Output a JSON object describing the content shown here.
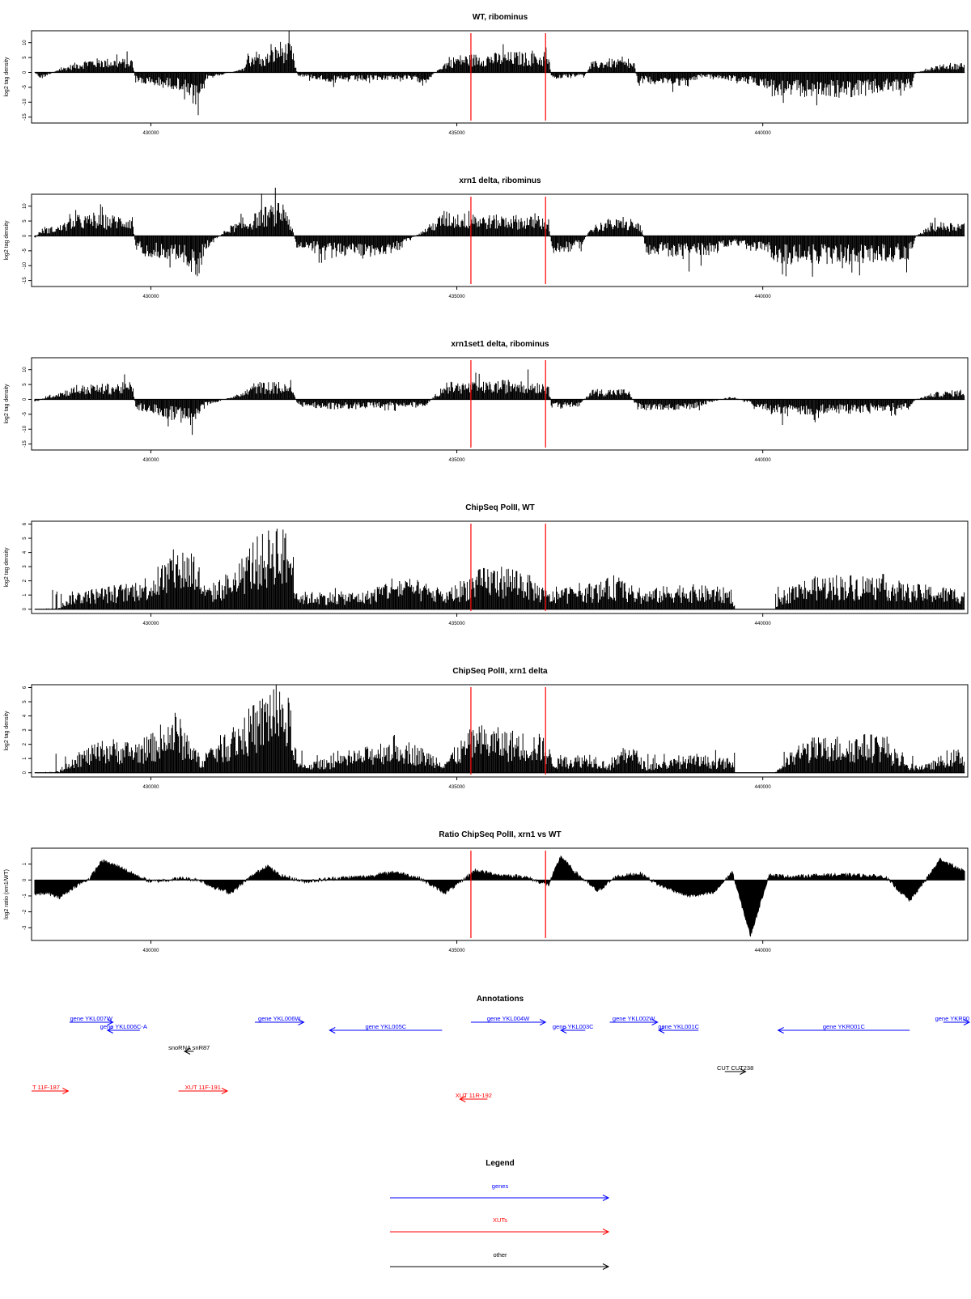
{
  "highlight_color": "#ff0000",
  "colors": {
    "genes": "#0000ff",
    "xuts": "#ff0000",
    "other": "#000000",
    "bars": "#000000"
  },
  "panels": [
    {
      "title": "WT, ribominus",
      "ylabel": "log2 tag density",
      "type": "signed",
      "ylim": [
        -17,
        14
      ],
      "yticks": [
        -15,
        -10,
        -5,
        0,
        5,
        10
      ],
      "profile": {
        "pos": [
          [
            428100,
            0
          ],
          [
            428200,
            -2
          ],
          [
            428500,
            1
          ],
          [
            428800,
            3
          ],
          [
            429000,
            4
          ],
          [
            429700,
            4
          ],
          [
            429750,
            -3
          ],
          [
            430000,
            -4
          ],
          [
            430500,
            -5
          ],
          [
            430700,
            -10
          ],
          [
            430780,
            -14
          ],
          [
            430900,
            -2
          ],
          [
            431500,
            1
          ],
          [
            431550,
            3
          ],
          [
            431700,
            7
          ],
          [
            431800,
            4
          ],
          [
            432000,
            7
          ],
          [
            432100,
            9
          ],
          [
            432300,
            8
          ],
          [
            432400,
            -1
          ],
          [
            433000,
            -3
          ],
          [
            434000,
            -2
          ],
          [
            434500,
            -3
          ],
          [
            434800,
            3
          ],
          [
            435000,
            5
          ],
          [
            436000,
            6
          ],
          [
            436500,
            5
          ],
          [
            436550,
            -2
          ],
          [
            437100,
            -1
          ],
          [
            437200,
            3
          ],
          [
            437500,
            4
          ],
          [
            437900,
            3
          ],
          [
            437950,
            -3
          ],
          [
            438800,
            -4
          ],
          [
            439000,
            -1
          ],
          [
            440000,
            -4
          ],
          [
            440300,
            -7
          ],
          [
            441500,
            -7
          ],
          [
            442400,
            -5
          ],
          [
            442500,
            0
          ],
          [
            442800,
            2
          ],
          [
            443300,
            3
          ]
        ]
      }
    },
    {
      "title": "xrn1 delta, ribominus",
      "ylabel": "log2 tag density",
      "type": "signed",
      "ylim": [
        -17,
        14
      ],
      "yticks": [
        -15,
        -10,
        -5,
        0,
        5,
        10
      ],
      "profile": {
        "pos": [
          [
            428100,
            -1
          ],
          [
            428200,
            2
          ],
          [
            428500,
            3
          ],
          [
            428800,
            6
          ],
          [
            429700,
            6
          ],
          [
            429750,
            -4
          ],
          [
            430000,
            -6
          ],
          [
            430500,
            -7
          ],
          [
            430750,
            -13
          ],
          [
            430900,
            -4
          ],
          [
            431300,
            3
          ],
          [
            431600,
            5
          ],
          [
            431800,
            8
          ],
          [
            432000,
            9
          ],
          [
            432200,
            10
          ],
          [
            432400,
            -4
          ],
          [
            433000,
            -6
          ],
          [
            434000,
            -5
          ],
          [
            434800,
            7
          ],
          [
            435500,
            6
          ],
          [
            436000,
            6
          ],
          [
            436500,
            5
          ],
          [
            436550,
            -5
          ],
          [
            437000,
            -4
          ],
          [
            437200,
            3
          ],
          [
            437500,
            5
          ],
          [
            438000,
            4
          ],
          [
            438100,
            -5
          ],
          [
            438800,
            -7
          ],
          [
            439500,
            -3
          ],
          [
            440000,
            -5
          ],
          [
            440300,
            -8
          ],
          [
            441500,
            -8
          ],
          [
            442400,
            -7
          ],
          [
            442500,
            0
          ],
          [
            442800,
            4
          ],
          [
            443300,
            4
          ]
        ]
      }
    },
    {
      "title": "xrn1set1 delta, ribominus",
      "ylabel": "log2 tag density",
      "type": "signed",
      "ylim": [
        -17,
        14
      ],
      "yticks": [
        -15,
        -10,
        -5,
        0,
        5,
        10
      ],
      "profile": {
        "pos": [
          [
            428100,
            -1
          ],
          [
            428300,
            1
          ],
          [
            428800,
            4
          ],
          [
            429700,
            5
          ],
          [
            429750,
            -3
          ],
          [
            430000,
            -4
          ],
          [
            430700,
            -8
          ],
          [
            430900,
            -2
          ],
          [
            431500,
            2
          ],
          [
            431700,
            5
          ],
          [
            432000,
            5
          ],
          [
            432300,
            4
          ],
          [
            432400,
            -2
          ],
          [
            433000,
            -3
          ],
          [
            434500,
            -2
          ],
          [
            434800,
            5
          ],
          [
            435500,
            5
          ],
          [
            436000,
            6
          ],
          [
            436500,
            5
          ],
          [
            436550,
            -3
          ],
          [
            437000,
            -2
          ],
          [
            437200,
            3
          ],
          [
            437800,
            3
          ],
          [
            437950,
            -3
          ],
          [
            438800,
            -3
          ],
          [
            439500,
            1
          ],
          [
            440000,
            -3
          ],
          [
            440300,
            -5
          ],
          [
            441500,
            -4
          ],
          [
            442400,
            -3
          ],
          [
            442500,
            0
          ],
          [
            442800,
            2
          ],
          [
            443300,
            3
          ]
        ]
      }
    },
    {
      "title": "ChipSeq PolII, WT",
      "ylabel": "log2 tag density",
      "type": "positive",
      "ylim": [
        -0.3,
        6.2
      ],
      "yticks": [
        0,
        1,
        2,
        3,
        4,
        5,
        6
      ],
      "profile": {
        "pos": [
          [
            428100,
            0
          ],
          [
            428500,
            0.1
          ],
          [
            428700,
            1
          ],
          [
            429600,
            1.5
          ],
          [
            430000,
            2
          ],
          [
            430400,
            3.5
          ],
          [
            430700,
            3.6
          ],
          [
            430900,
            1.2
          ],
          [
            431400,
            2.5
          ],
          [
            431700,
            4.2
          ],
          [
            431900,
            4.3
          ],
          [
            432000,
            5.5
          ],
          [
            432300,
            4
          ],
          [
            432400,
            1
          ],
          [
            433500,
            1
          ],
          [
            434000,
            2
          ],
          [
            434500,
            1.5
          ],
          [
            434800,
            1
          ],
          [
            435200,
            2
          ],
          [
            435500,
            2.5
          ],
          [
            436000,
            2.5
          ],
          [
            436500,
            1
          ],
          [
            437000,
            1.5
          ],
          [
            437300,
            1.5
          ],
          [
            437600,
            2
          ],
          [
            438000,
            1
          ],
          [
            438600,
            1.5
          ],
          [
            439500,
            1.2
          ],
          [
            439550,
            0
          ],
          [
            440200,
            0
          ],
          [
            440300,
            1
          ],
          [
            440500,
            1.5
          ],
          [
            441000,
            2
          ],
          [
            442000,
            2
          ],
          [
            442300,
            1.5
          ],
          [
            443300,
            1.2
          ]
        ]
      }
    },
    {
      "title": "ChipSeq PolII, xrn1 delta",
      "ylabel": "log2 tag density",
      "type": "positive",
      "ylim": [
        -0.3,
        6.2
      ],
      "yticks": [
        0,
        1,
        2,
        3,
        4,
        5,
        6
      ],
      "profile": {
        "pos": [
          [
            428100,
            0
          ],
          [
            428500,
            0.1
          ],
          [
            428700,
            1
          ],
          [
            429300,
            2
          ],
          [
            429700,
            1.8
          ],
          [
            430000,
            2.2
          ],
          [
            430400,
            3.6
          ],
          [
            430800,
            1
          ],
          [
            431400,
            3
          ],
          [
            431800,
            4.3
          ],
          [
            432000,
            5.6
          ],
          [
            432300,
            4
          ],
          [
            432400,
            0.5
          ],
          [
            433200,
            1
          ],
          [
            434000,
            2.2
          ],
          [
            434400,
            1.5
          ],
          [
            434800,
            0.8
          ],
          [
            435300,
            2.8
          ],
          [
            435800,
            2.5
          ],
          [
            436400,
            2.2
          ],
          [
            436600,
            0.8
          ],
          [
            437200,
            1.2
          ],
          [
            437500,
            0.5
          ],
          [
            437800,
            2
          ],
          [
            438100,
            0.5
          ],
          [
            438800,
            1
          ],
          [
            439500,
            0.8
          ],
          [
            439550,
            0
          ],
          [
            440200,
            0
          ],
          [
            440400,
            1
          ],
          [
            440700,
            2
          ],
          [
            441500,
            2.2
          ],
          [
            442000,
            2.3
          ],
          [
            442300,
            0.5
          ],
          [
            442700,
            0.5
          ],
          [
            443000,
            1.2
          ],
          [
            443300,
            1.5
          ]
        ]
      }
    },
    {
      "title": "Ratio ChipSeq PolII, xrn1 vs WT",
      "ylabel": "log2 ratio (xrn1/WT)",
      "type": "ratio",
      "ylim": [
        -3.8,
        2.0
      ],
      "yticks": [
        -3,
        -2,
        -1,
        0,
        1
      ],
      "profile": {
        "pos": [
          [
            428100,
            -0.9
          ],
          [
            428300,
            -0.8
          ],
          [
            428500,
            -1.1
          ],
          [
            428800,
            -0.3
          ],
          [
            429000,
            0.1
          ],
          [
            429200,
            1.2
          ],
          [
            429500,
            0.8
          ],
          [
            429800,
            0.2
          ],
          [
            430000,
            -0.1
          ],
          [
            430500,
            0.1
          ],
          [
            430800,
            0
          ],
          [
            431000,
            -0.4
          ],
          [
            431300,
            -0.8
          ],
          [
            431600,
            0.1
          ],
          [
            431900,
            0.9
          ],
          [
            432100,
            0.3
          ],
          [
            432500,
            -0.1
          ],
          [
            433000,
            0.1
          ],
          [
            433500,
            0.2
          ],
          [
            434000,
            0.5
          ],
          [
            434400,
            0.1
          ],
          [
            434800,
            -0.8
          ],
          [
            435000,
            -0.3
          ],
          [
            435300,
            0.6
          ],
          [
            435700,
            0.3
          ],
          [
            436100,
            0.2
          ],
          [
            436500,
            -0.3
          ],
          [
            436700,
            1.5
          ],
          [
            436900,
            0.6
          ],
          [
            437300,
            -0.7
          ],
          [
            437600,
            0.2
          ],
          [
            438000,
            0.4
          ],
          [
            438300,
            -0.3
          ],
          [
            438800,
            -1
          ],
          [
            439200,
            -0.8
          ],
          [
            439500,
            0.5
          ],
          [
            439800,
            -3.5
          ],
          [
            440100,
            0.3
          ],
          [
            440500,
            0.2
          ],
          [
            441000,
            0.3
          ],
          [
            441500,
            0.3
          ],
          [
            442000,
            0.2
          ],
          [
            442400,
            -1.3
          ],
          [
            442700,
            0.2
          ],
          [
            442900,
            1.3
          ],
          [
            443300,
            0.5
          ]
        ]
      }
    }
  ],
  "chart_data": {
    "type": "bar",
    "xlim": [
      428050,
      443350
    ],
    "xticks": [
      430000,
      435000,
      440000
    ],
    "xtick_labels": [
      "430000",
      "435000",
      "440000"
    ],
    "highlights": [
      435230,
      436450
    ],
    "series_names": [
      "WT, ribominus",
      "xrn1 delta, ribominus",
      "xrn1set1 delta, ribominus",
      "ChipSeq PolII, WT",
      "ChipSeq PolII, xrn1 delta",
      "Ratio ChipSeq PolII, xrn1 vs WT"
    ]
  },
  "annotations": {
    "title": "Annotations",
    "items": [
      {
        "label": "gene YKL007W",
        "start": 428670,
        "end": 429380,
        "strand": "+",
        "kind": "gene",
        "row": 0
      },
      {
        "label": "gene YKL006C-A",
        "start": 429290,
        "end": 429820,
        "strand": "-",
        "kind": "gene",
        "row": 1
      },
      {
        "label": "gene YKL006W",
        "start": 431700,
        "end": 432500,
        "strand": "+",
        "kind": "gene",
        "row": 0
      },
      {
        "label": "gene YKL005C",
        "start": 432920,
        "end": 434760,
        "strand": "-",
        "kind": "gene",
        "row": 1
      },
      {
        "label": "gene YKL004W",
        "start": 435230,
        "end": 436450,
        "strand": "+",
        "kind": "gene",
        "row": 0
      },
      {
        "label": "gene YKL003C",
        "start": 436700,
        "end": 437100,
        "strand": "-",
        "kind": "gene",
        "row": 1
      },
      {
        "label": "gene YKL002W",
        "start": 437500,
        "end": 438280,
        "strand": "+",
        "kind": "gene",
        "row": 0
      },
      {
        "label": "gene YKL001C",
        "start": 438300,
        "end": 438950,
        "strand": "-",
        "kind": "gene",
        "row": 1
      },
      {
        "label": "gene YKR001C",
        "start": 440250,
        "end": 442400,
        "strand": "-",
        "kind": "gene",
        "row": 1
      },
      {
        "label": "gene YKR00",
        "start": 442950,
        "end": 443380,
        "strand": "+",
        "kind": "gene",
        "row": 0
      },
      {
        "label": "snoRNA snR87",
        "start": 430550,
        "end": 430700,
        "strand": "-",
        "kind": "other",
        "row": 2
      },
      {
        "label": "CUT CUT238",
        "start": 439380,
        "end": 439720,
        "strand": "+",
        "kind": "other",
        "row": 3
      },
      {
        "label": "T 11F-187",
        "start": 428050,
        "end": 428650,
        "strand": "+",
        "kind": "xut",
        "row": 4
      },
      {
        "label": "XUT 11F-191",
        "start": 430450,
        "end": 431250,
        "strand": "+",
        "kind": "xut",
        "row": 4
      },
      {
        "label": "XUT 11R-192",
        "start": 435050,
        "end": 435500,
        "strand": "-",
        "kind": "xut",
        "row": 5
      }
    ]
  },
  "legend": {
    "title": "Legend",
    "items": [
      {
        "label": "genes",
        "kind": "gene"
      },
      {
        "label": "XUTs",
        "kind": "xut"
      },
      {
        "label": "other",
        "kind": "other"
      }
    ]
  }
}
